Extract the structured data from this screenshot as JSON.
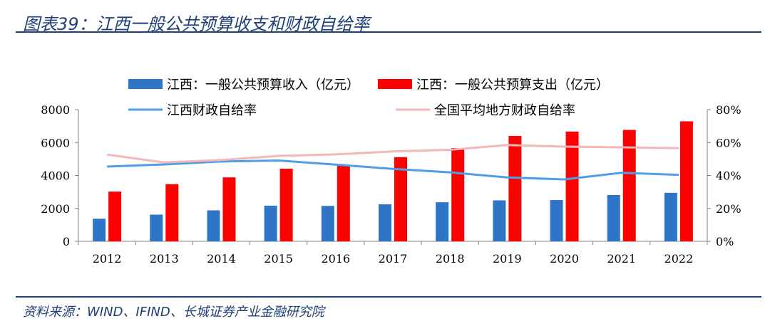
{
  "header": {
    "title": "图表39：江西一般公共预算收支和财政自给率"
  },
  "footer": {
    "source": "资料来源：WIND、IFIND、长城证券产业金融研究院"
  },
  "chart_data": {
    "type": "bar",
    "categories": [
      "2012",
      "2013",
      "2014",
      "2015",
      "2016",
      "2017",
      "2018",
      "2019",
      "2020",
      "2021",
      "2022"
    ],
    "series": [
      {
        "name": "江西：一般公共预算收入（亿元）",
        "kind": "bar",
        "axis": "left",
        "color": "#2e75c7",
        "values": [
          1371,
          1621,
          1882,
          2165,
          2151,
          2247,
          2373,
          2487,
          2508,
          2812,
          2948
        ]
      },
      {
        "name": "江西：一般公共预算支出（亿元）",
        "kind": "bar",
        "axis": "left",
        "color": "#ff0000",
        "values": [
          3019,
          3471,
          3883,
          4412,
          4617,
          5111,
          5667,
          6402,
          6666,
          6766,
          7290
        ]
      },
      {
        "name": "江西财政自给率",
        "kind": "line",
        "axis": "right",
        "color": "#4a9fe8",
        "values": [
          0.454,
          0.467,
          0.485,
          0.491,
          0.466,
          0.44,
          0.419,
          0.388,
          0.376,
          0.416,
          0.404
        ]
      },
      {
        "name": "全国平均地方财政自给率",
        "kind": "line",
        "axis": "right",
        "color": "#f4b6b6",
        "values": [
          0.527,
          0.479,
          0.494,
          0.519,
          0.528,
          0.546,
          0.556,
          0.585,
          0.575,
          0.571,
          0.566
        ]
      }
    ],
    "y_left": {
      "ticks": [
        "0",
        "2000",
        "4000",
        "6000",
        "8000"
      ],
      "lim": [
        0,
        8000
      ]
    },
    "y_right": {
      "ticks": [
        "0%",
        "20%",
        "40%",
        "60%",
        "80%"
      ],
      "lim": [
        0,
        0.8
      ]
    },
    "legend_position": "top",
    "grid": false
  }
}
